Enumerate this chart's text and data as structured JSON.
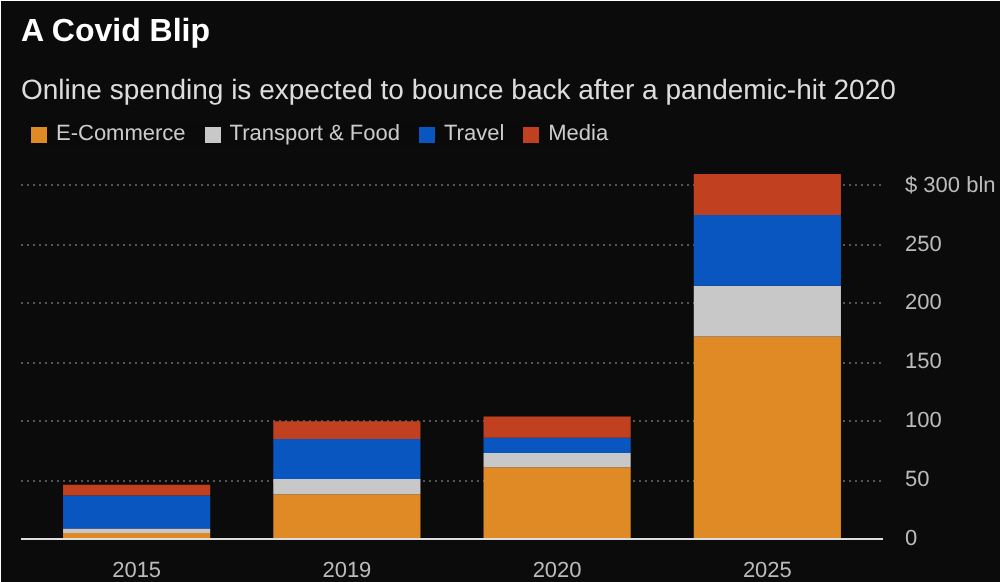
{
  "chart_data": {
    "type": "bar",
    "stacked": true,
    "title": "A Covid Blip",
    "subtitle": "Online spending is expected to bounce back after a pandemic-hit 2020",
    "categories": [
      "2015",
      "2019",
      "2020",
      "2025"
    ],
    "series": [
      {
        "name": "E-Commerce",
        "color": "#e08a25",
        "values": [
          5,
          38,
          61,
          172
        ]
      },
      {
        "name": "Transport & Food",
        "color": "#c8c8c8",
        "values": [
          4,
          13,
          12,
          43
        ]
      },
      {
        "name": "Travel",
        "color": "#0a56c0",
        "values": [
          28,
          34,
          13,
          60
        ]
      },
      {
        "name": "Media",
        "color": "#c0401f",
        "values": [
          9,
          15,
          18,
          35
        ]
      }
    ],
    "ylim": [
      0,
      360
    ],
    "yticks": [
      0,
      50,
      100,
      150,
      200,
      250,
      {
        "value": 300,
        "label": "$ 300 bln"
      }
    ],
    "grid": "y",
    "legend": "top left"
  }
}
